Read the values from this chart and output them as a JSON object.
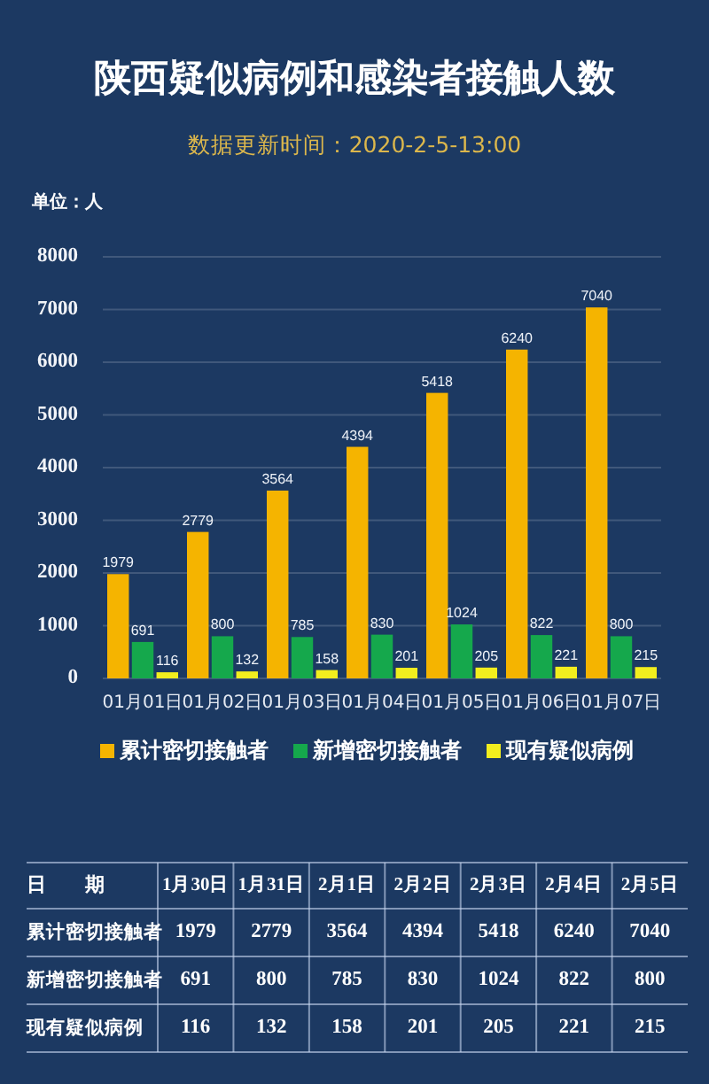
{
  "chart_data": [
    {
      "type": "bar",
      "title": "陕西疑似病例和感染者接触人数",
      "subtitle": "数据更新时间：2020-2-5-13:00",
      "ylabel": "单位：人",
      "categories": [
        "01月01日",
        "01月02日",
        "01月03日",
        "01月04日",
        "01月05日",
        "01月06日",
        "01月07日"
      ],
      "series": [
        {
          "name": "累计密切接触者",
          "color": "#f5b400",
          "values": [
            1979,
            2779,
            3564,
            4394,
            5418,
            6240,
            7040
          ]
        },
        {
          "name": "新增密切接触者",
          "color": "#15a84c",
          "values": [
            691,
            800,
            785,
            830,
            1024,
            822,
            800
          ]
        },
        {
          "name": "现有疑似病例",
          "color": "#f2ee1e",
          "values": [
            116,
            132,
            158,
            201,
            205,
            221,
            215
          ]
        }
      ],
      "ylim": [
        0,
        8000
      ],
      "yticks": [
        0,
        1000,
        2000,
        3000,
        4000,
        5000,
        6000,
        7000,
        8000
      ],
      "grid": "y",
      "legend": "bottom",
      "data_labels": true
    },
    {
      "type": "other",
      "xlabel": "日　　期",
      "categories": [
        "1月30日",
        "1月31日",
        "2月1日",
        "2月2日",
        "2月3日",
        "2月4日",
        "2月5日"
      ],
      "series": [
        {
          "name": "累计密切接触者",
          "values": [
            1979,
            2779,
            3564,
            4394,
            5418,
            6240,
            7040
          ]
        },
        {
          "name": "新增密切接触者",
          "values": [
            691,
            800,
            785,
            830,
            1024,
            822,
            800
          ]
        },
        {
          "name": "现有疑似病例",
          "values": [
            116,
            132,
            158,
            201,
            205,
            221,
            215
          ]
        }
      ],
      "data_labels": true
    }
  ]
}
